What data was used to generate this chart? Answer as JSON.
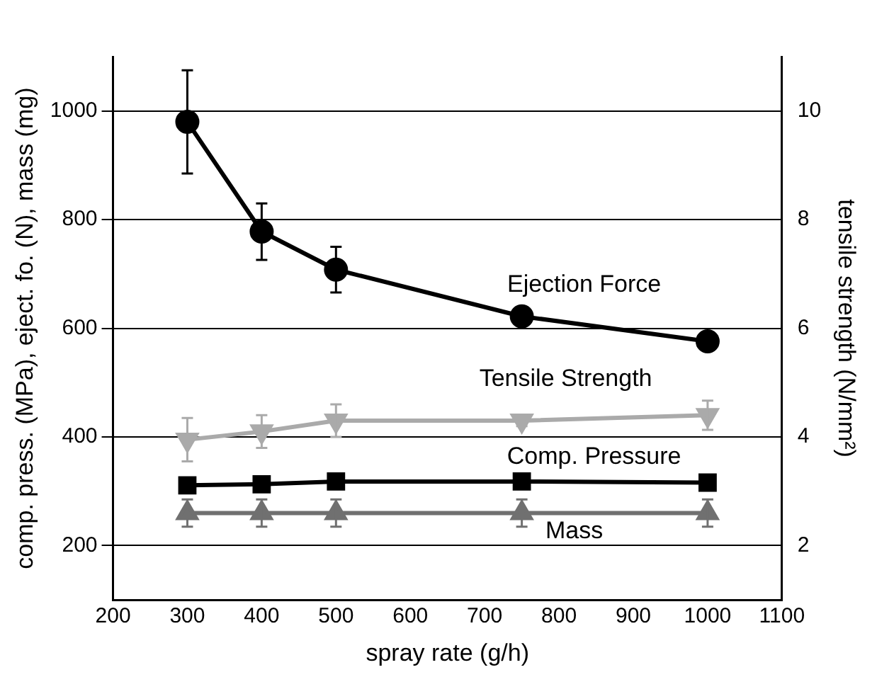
{
  "chart_data": {
    "type": "line",
    "xlabel": "spray rate (g/h)",
    "ylabel": "comp. press. (MPa), eject. fo. (N), mass (mg)",
    "y2label": "tensile strength (N/mm²)",
    "x": [
      300,
      400,
      500,
      750,
      1000
    ],
    "series": [
      {
        "name": "Ejection Force",
        "color": "#000000",
        "marker": "circle",
        "values": [
          980,
          778,
          708,
          622,
          576
        ],
        "errors": [
          95,
          52,
          42,
          null,
          null
        ]
      },
      {
        "name": "Tensile Strength",
        "color": "#aaaaaa",
        "marker": "triangle-down",
        "axis": "y2",
        "values": [
          3.95,
          4.1,
          4.3,
          4.3,
          4.4
        ],
        "errors": [
          0.4,
          0.3,
          0.3,
          0.1,
          0.27
        ]
      },
      {
        "name": "Comp. Pressure",
        "color": "#000000",
        "marker": "square",
        "values": [
          311,
          313,
          318,
          318,
          316
        ]
      },
      {
        "name": "Mass",
        "color": "#707070",
        "marker": "triangle",
        "values": [
          260,
          260,
          260,
          260,
          260
        ],
        "errors": [
          25,
          25,
          25,
          25,
          25
        ]
      }
    ],
    "xlim": [
      200,
      1100
    ],
    "xticks": [
      200,
      300,
      400,
      500,
      600,
      700,
      800,
      900,
      1000,
      1100
    ],
    "ylim": [
      100,
      1100
    ],
    "yticks": [
      200,
      400,
      600,
      800,
      1000
    ],
    "y2lim": [
      1,
      11
    ],
    "y2ticks": [
      2,
      4,
      6,
      8,
      10
    ],
    "grid": "y",
    "legend": false,
    "line_style": "solid"
  }
}
